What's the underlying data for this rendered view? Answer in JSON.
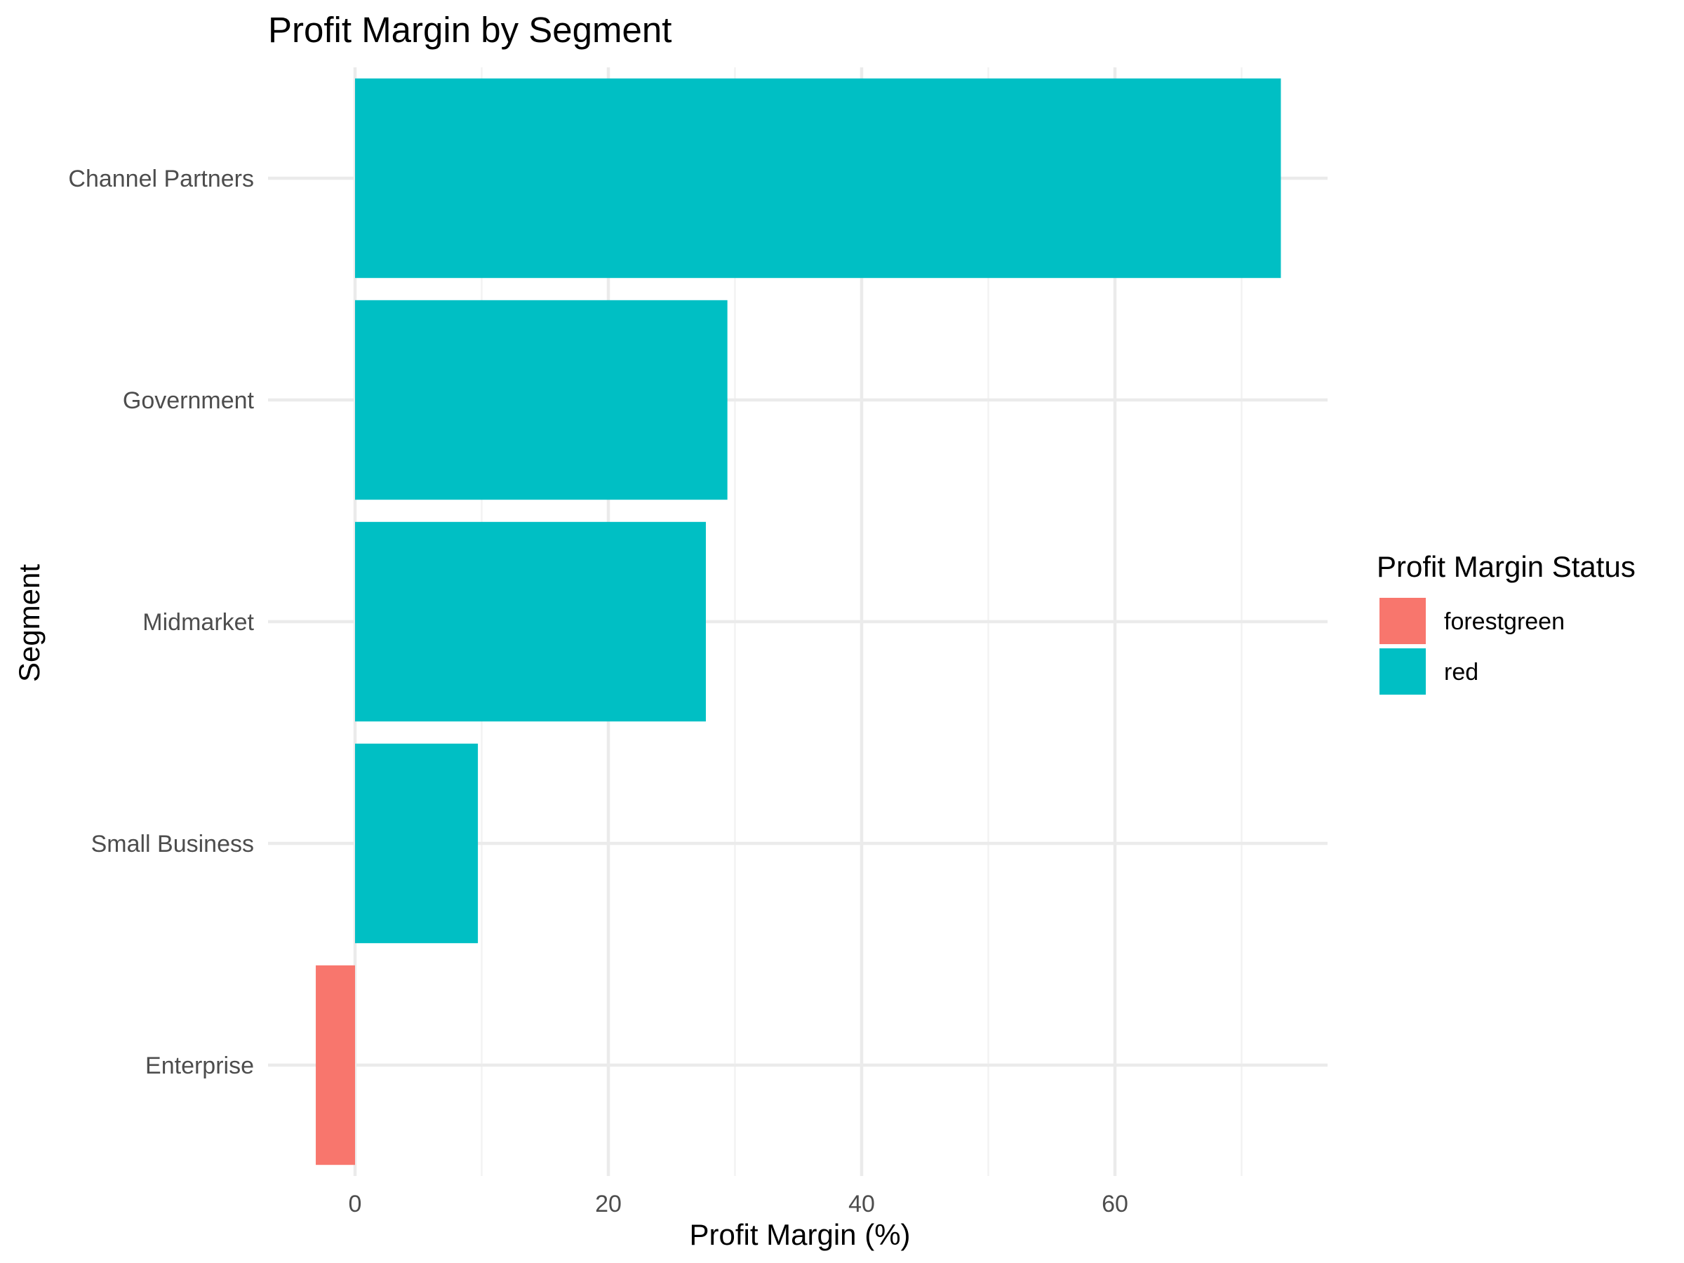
{
  "chart_data": {
    "type": "bar",
    "orientation": "horizontal",
    "title": "Profit Margin by Segment",
    "xlabel": "Profit Margin (%)",
    "ylabel": "Segment",
    "categories": [
      "Enterprise",
      "Small Business",
      "Midmarket",
      "Government",
      "Channel Partners"
    ],
    "values": [
      -3.1,
      9.7,
      27.7,
      29.4,
      73.1
    ],
    "fill_groups": [
      "forestgreen",
      "red",
      "red",
      "red",
      "red"
    ],
    "xlim": [
      -3.1,
      73.1
    ],
    "xticks": [
      0,
      20,
      40,
      60
    ],
    "xtick_labels": [
      "0",
      "20",
      "40",
      "60"
    ],
    "grid": true,
    "legend": {
      "title": "Profit Margin Status",
      "placement": "right",
      "entries": [
        {
          "label": "forestgreen",
          "color": "#F8766D"
        },
        {
          "label": "red",
          "color": "#00BFC4"
        }
      ]
    }
  }
}
